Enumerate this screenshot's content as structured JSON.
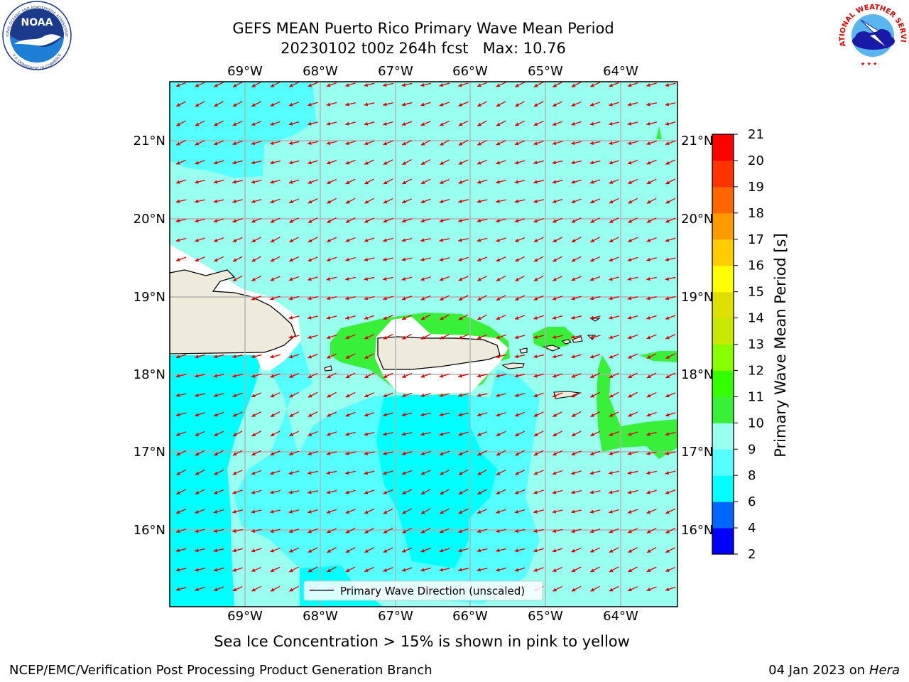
{
  "header": {
    "title_line1": "GEFS MEAN Puerto Rico Primary Wave Mean Period",
    "title_line2": "20230102 t00z 264h fcst   Max: 10.76"
  },
  "logos": {
    "noaa_text": "NOAA",
    "noaa_ring_top": "NATIONAL OCEANIC AND ATMOSPHERIC ADMINISTRATION",
    "noaa_ring_bottom": "U.S. DEPARTMENT OF COMMERCE",
    "nws_ring": "NATIONAL WEATHER SERVICE"
  },
  "map": {
    "lon_labels": [
      "69°W",
      "68°W",
      "67°W",
      "66°W",
      "65°W",
      "64°W"
    ],
    "lat_labels": [
      "21°N",
      "20°N",
      "19°N",
      "18°N",
      "17°N",
      "16°N"
    ],
    "legend_label": "Primary Wave Direction (unscaled)",
    "arrow_color": "#e00000",
    "coast_color": "#000000",
    "land_color": "#efebdc"
  },
  "colorbar": {
    "label": "Primary Wave Mean Period [s]",
    "ticks": [
      "2",
      "4",
      "6",
      "8",
      "9",
      "10",
      "11",
      "12",
      "13",
      "14",
      "15",
      "16",
      "17",
      "18",
      "19",
      "20",
      "21"
    ],
    "colors": [
      "#0000ff",
      "#0066ff",
      "#00ffff",
      "#55ffff",
      "#99ffee",
      "#38f038",
      "#33ff00",
      "#88ff00",
      "#c8e800",
      "#e0e000",
      "#ffff00",
      "#ffcc00",
      "#ff9900",
      "#ff6600",
      "#ff3300",
      "#ff0000"
    ]
  },
  "subtitle": "Sea Ice Concentration > 15% is shown in pink to yellow",
  "footer": {
    "left": "NCEP/EMC/Verification Post Processing Product Generation Branch",
    "date": "04 Jan 2023 on ",
    "machine": "Hera"
  }
}
